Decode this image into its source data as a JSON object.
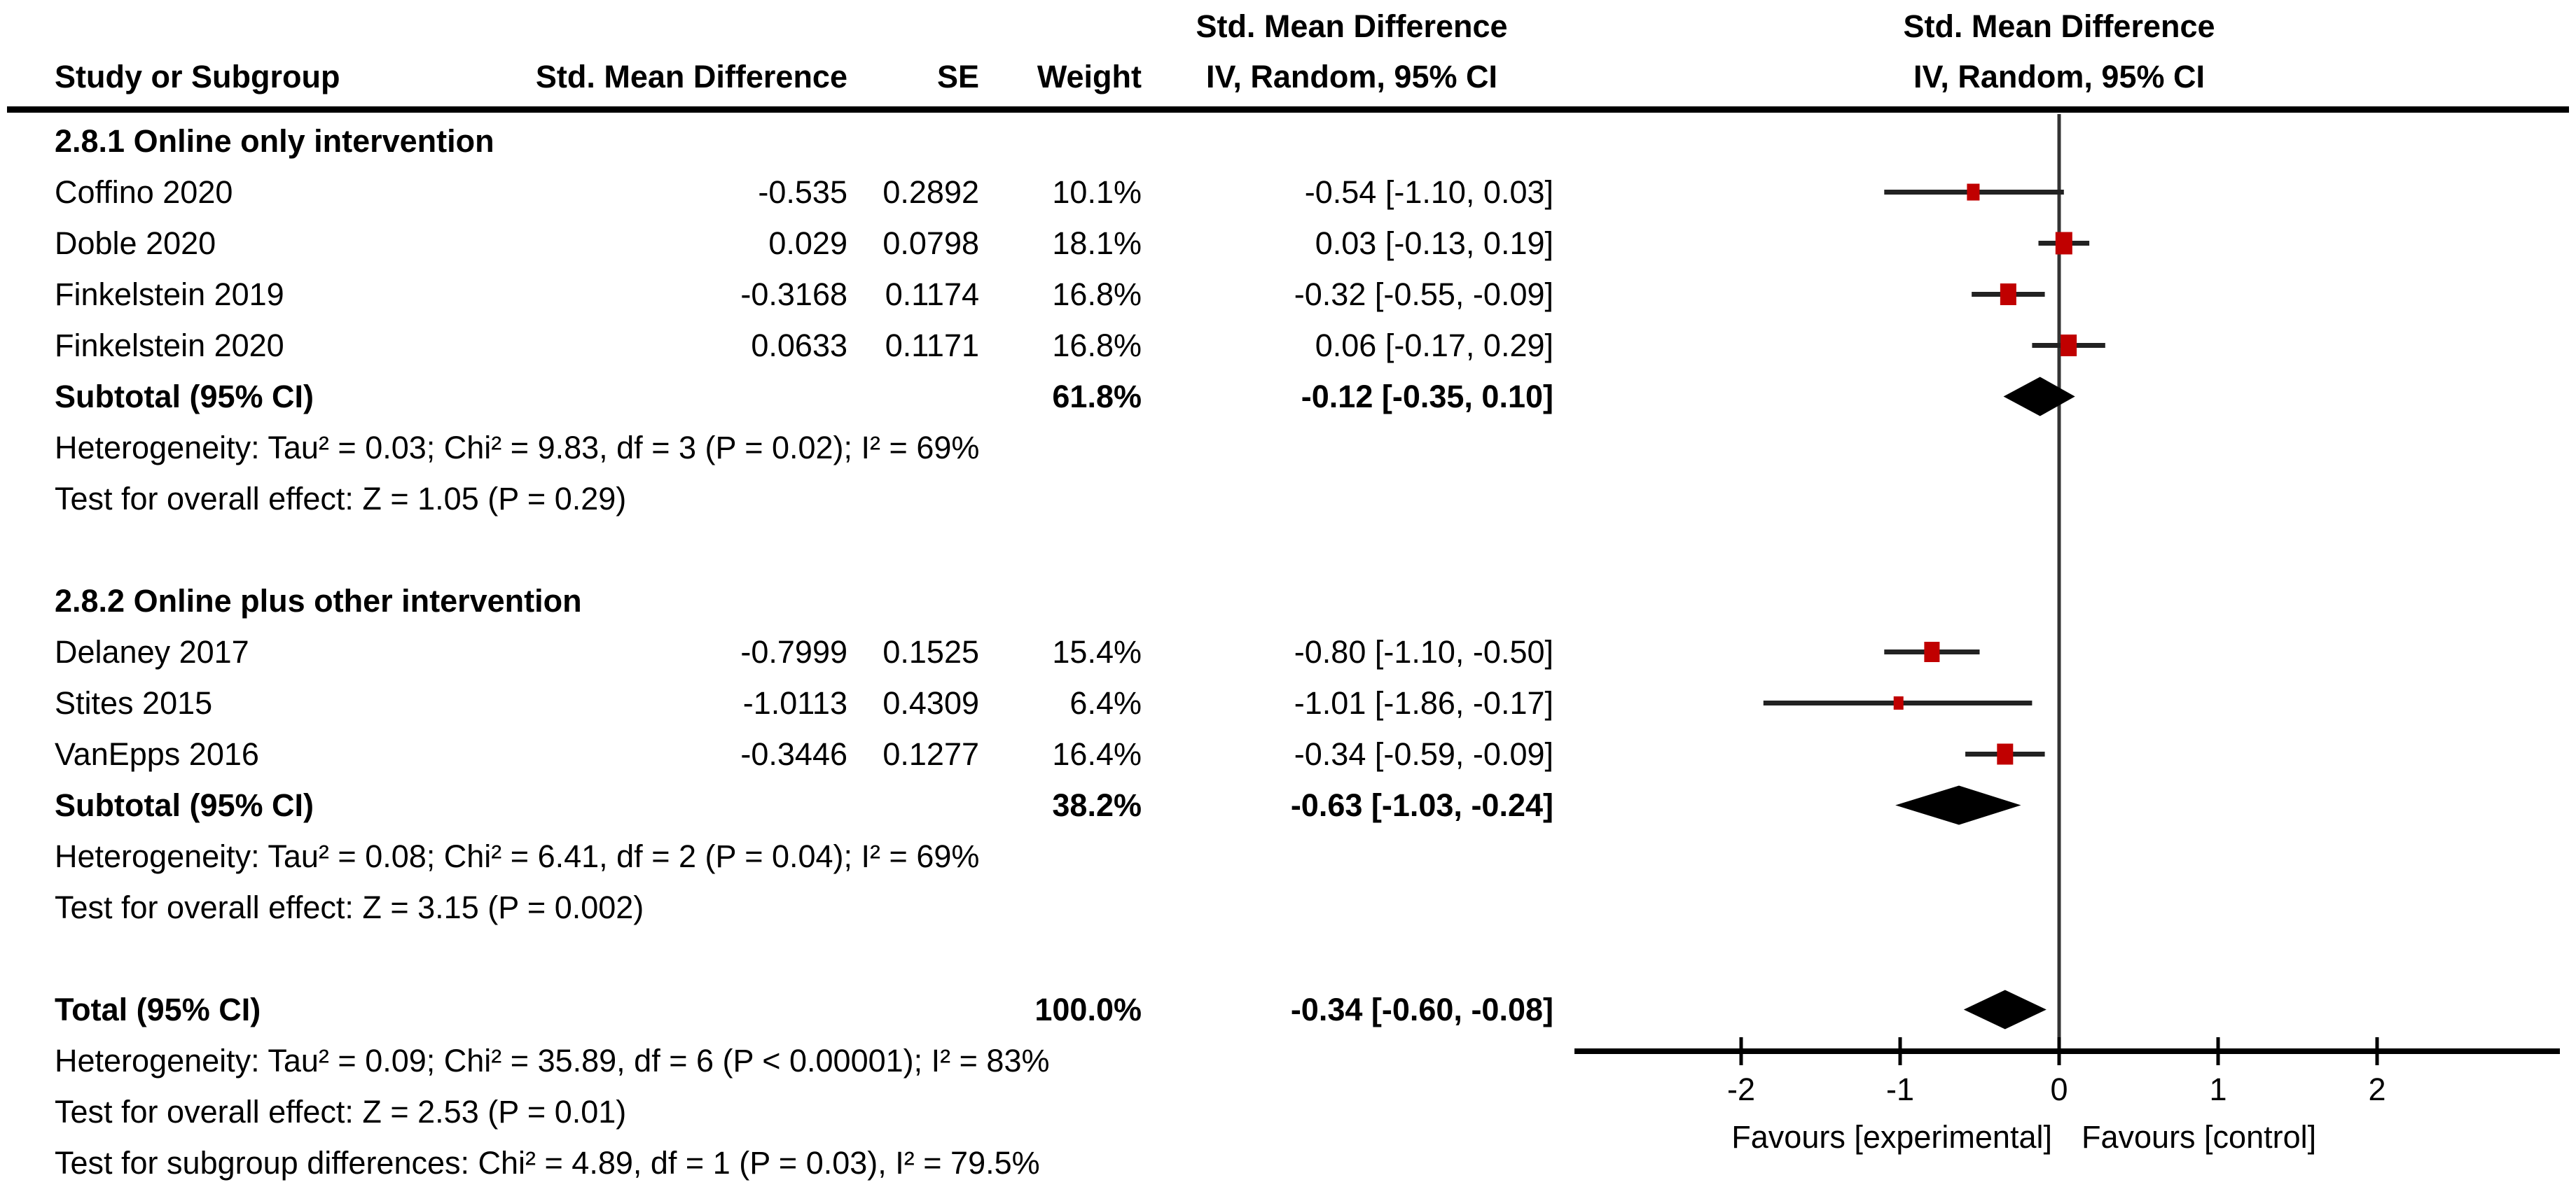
{
  "header": {
    "study_col": "Study or Subgroup",
    "smd_col": "Std. Mean Difference",
    "se_col": "SE",
    "weight_col": "Weight",
    "ci_col_line1": "Std. Mean Difference",
    "ci_col_line2": "IV, Random, 95% CI",
    "plot_col_line1": "Std. Mean Difference",
    "plot_col_line2": "IV, Random, 95% CI"
  },
  "colors": {
    "marker_red": "#c00000",
    "diamond_black": "#000000",
    "line_dark": "#333333",
    "text": "#000000"
  },
  "chart_data": {
    "type": "forest",
    "effect_measure": "Std. Mean Difference",
    "model": "IV, Random, 95% CI",
    "axis": {
      "ticks": [
        -2,
        -1,
        0,
        1,
        2
      ],
      "tick_labels": [
        "-2",
        "-1",
        "0",
        "1",
        "2"
      ],
      "xmin": -3.05,
      "xmax": 3.15,
      "zero_line": 0,
      "favours_left": "Favours [experimental]",
      "favours_right": "Favours [control]"
    },
    "rows": [
      {
        "kind": "group",
        "label": "2.8.1 Online only intervention"
      },
      {
        "kind": "study",
        "label": "Coffino 2020",
        "smd": "-0.535",
        "se": "0.2892",
        "weight": "10.1%",
        "ci": "-0.54 [-1.10, 0.03]",
        "est": -0.54,
        "lo": -1.1,
        "hi": 0.03,
        "w": 10.1
      },
      {
        "kind": "study",
        "label": "Doble 2020",
        "smd": "0.029",
        "se": "0.0798",
        "weight": "18.1%",
        "ci": "0.03 [-0.13, 0.19]",
        "est": 0.03,
        "lo": -0.13,
        "hi": 0.19,
        "w": 18.1
      },
      {
        "kind": "study",
        "label": "Finkelstein 2019",
        "smd": "-0.3168",
        "se": "0.1174",
        "weight": "16.8%",
        "ci": "-0.32 [-0.55, -0.09]",
        "est": -0.32,
        "lo": -0.55,
        "hi": -0.09,
        "w": 16.8
      },
      {
        "kind": "study",
        "label": "Finkelstein 2020",
        "smd": "0.0633",
        "se": "0.1171",
        "weight": "16.8%",
        "ci": "0.06 [-0.17, 0.29]",
        "est": 0.06,
        "lo": -0.17,
        "hi": 0.29,
        "w": 16.8
      },
      {
        "kind": "subtotal",
        "label": "Subtotal (95% CI)",
        "weight": "61.8%",
        "ci": "-0.12 [-0.35, 0.10]",
        "est": -0.12,
        "lo": -0.35,
        "hi": 0.1
      },
      {
        "kind": "note",
        "text": "Heterogeneity: Tau² = 0.03; Chi² = 9.83, df = 3 (P = 0.02); I² = 69%"
      },
      {
        "kind": "note",
        "text": "Test for overall effect: Z = 1.05 (P = 0.29)"
      },
      {
        "kind": "blank"
      },
      {
        "kind": "group",
        "label": "2.8.2 Online plus other intervention"
      },
      {
        "kind": "study",
        "label": "Delaney 2017",
        "smd": "-0.7999",
        "se": "0.1525",
        "weight": "15.4%",
        "ci": "-0.80 [-1.10, -0.50]",
        "est": -0.8,
        "lo": -1.1,
        "hi": -0.5,
        "w": 15.4
      },
      {
        "kind": "study",
        "label": "Stites 2015",
        "smd": "-1.0113",
        "se": "0.4309",
        "weight": "6.4%",
        "ci": "-1.01 [-1.86, -0.17]",
        "est": -1.01,
        "lo": -1.86,
        "hi": -0.17,
        "w": 6.4
      },
      {
        "kind": "study",
        "label": "VanEpps 2016",
        "smd": "-0.3446",
        "se": "0.1277",
        "weight": "16.4%",
        "ci": "-0.34 [-0.59, -0.09]",
        "est": -0.34,
        "lo": -0.59,
        "hi": -0.09,
        "w": 16.4
      },
      {
        "kind": "subtotal",
        "label": "Subtotal (95% CI)",
        "weight": "38.2%",
        "ci": "-0.63 [-1.03, -0.24]",
        "est": -0.63,
        "lo": -1.03,
        "hi": -0.24
      },
      {
        "kind": "note",
        "text": "Heterogeneity: Tau² = 0.08; Chi² = 6.41, df = 2 (P = 0.04); I² = 69%"
      },
      {
        "kind": "note",
        "text": "Test for overall effect: Z = 3.15 (P = 0.002)"
      },
      {
        "kind": "blank"
      },
      {
        "kind": "total",
        "label": "Total (95% CI)",
        "weight": "100.0%",
        "ci": "-0.34 [-0.60, -0.08]",
        "est": -0.34,
        "lo": -0.6,
        "hi": -0.08
      },
      {
        "kind": "note",
        "text": "Heterogeneity: Tau² = 0.09; Chi² = 35.89, df = 6 (P < 0.00001); I² = 83%"
      },
      {
        "kind": "note",
        "text": "Test for overall effect: Z = 2.53 (P = 0.01)"
      },
      {
        "kind": "note",
        "text": "Test for subgroup differences: Chi² = 4.89, df = 1 (P = 0.03), I² = 79.5%"
      }
    ]
  }
}
